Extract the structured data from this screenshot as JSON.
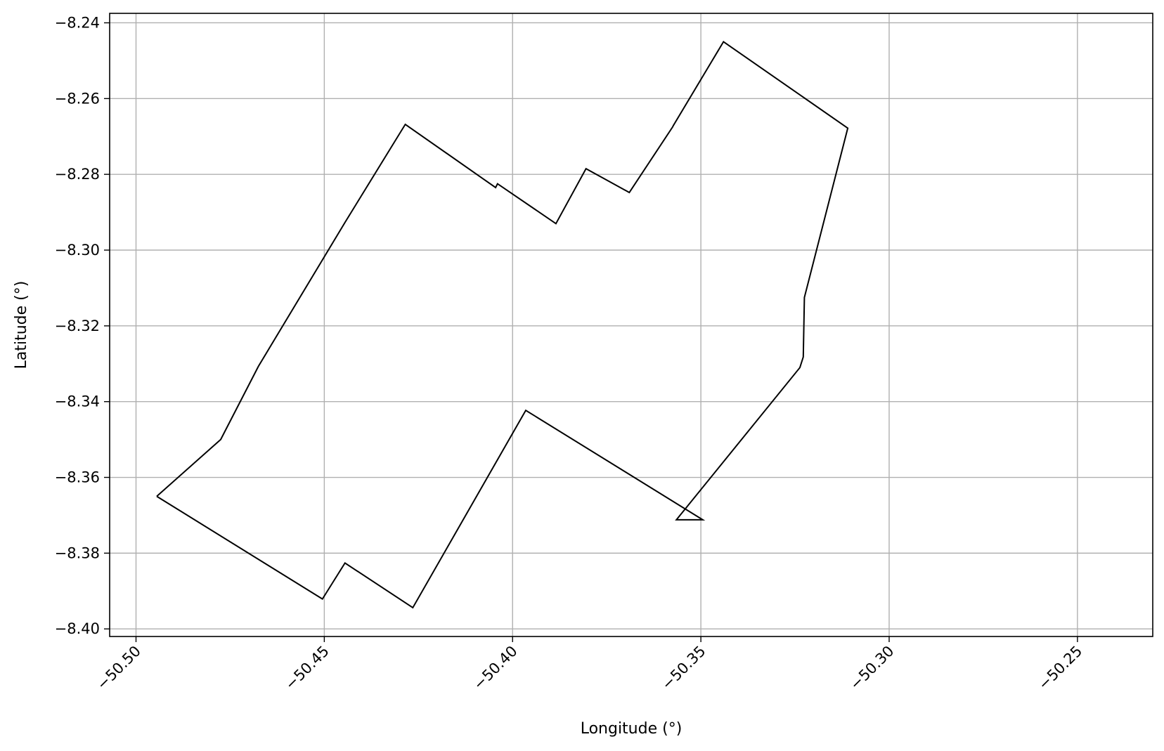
{
  "chart_data": {
    "type": "line",
    "title": "",
    "xlabel": "Longitude (°)",
    "ylabel": "Latitude (°)",
    "xlim": [
      -50.507,
      -50.23
    ],
    "ylim": [
      -8.402,
      -8.2375
    ],
    "xticks": [
      -50.5,
      -50.45,
      -50.4,
      -50.35,
      -50.3,
      -50.25
    ],
    "xtick_labels": [
      "−50.50",
      "−50.45",
      "−50.40",
      "−50.35",
      "−50.30",
      "−50.25"
    ],
    "yticks": [
      -8.24,
      -8.26,
      -8.28,
      -8.3,
      -8.32,
      -8.34,
      -8.36,
      -8.38,
      -8.4
    ],
    "ytick_labels": [
      "−8.24",
      "−8.26",
      "−8.28",
      "−8.30",
      "−8.32",
      "−8.34",
      "−8.36",
      "−8.38",
      "−8.40"
    ],
    "grid": true,
    "line_color": "#000000",
    "grid_color": "#b0b0b0",
    "series": [
      {
        "x": [
          -50.4945,
          -50.4775,
          -50.4675,
          -50.4445,
          -50.4285,
          -50.4045,
          -50.404,
          -50.3885,
          -50.3805,
          -50.369,
          -50.3575,
          -50.3573,
          -50.344,
          -50.311,
          -50.3225,
          -50.3228,
          -50.3237,
          -50.3565,
          -50.3495,
          -50.3965,
          -50.4265,
          -50.4445,
          -50.4505,
          -50.4945
        ],
        "y": [
          -8.365,
          -8.35,
          -8.3307,
          -8.2927,
          -8.2668,
          -8.2835,
          -8.2825,
          -8.293,
          -8.2785,
          -8.2848,
          -8.2675,
          -8.2671,
          -8.245,
          -8.2678,
          -8.3125,
          -8.3282,
          -8.331,
          -8.3712,
          -8.3712,
          -8.3423,
          -8.3944,
          -8.3826,
          -8.3921,
          -8.365
        ]
      }
    ]
  }
}
